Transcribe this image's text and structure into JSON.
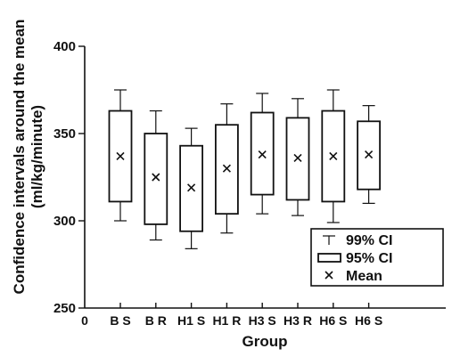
{
  "chart_data": {
    "type": "boxplot",
    "title": "",
    "xlabel": "Group",
    "ylabel_line1": "Confidence intervals around the mean",
    "ylabel_line2": "(ml/kg/minute)",
    "x_origin_label": "0",
    "ylim": [
      250,
      400
    ],
    "yticks": [
      250,
      300,
      350,
      400
    ],
    "categories": [
      "B S",
      "B R",
      "H1 S",
      "H1 R",
      "H3 S",
      "H3 R",
      "H6 S",
      "H6 S"
    ],
    "mean": [
      337,
      325,
      319,
      330,
      338,
      336,
      337,
      338
    ],
    "ci95_low": [
      311,
      298,
      294,
      304,
      315,
      312,
      311,
      318
    ],
    "ci95_high": [
      363,
      350,
      343,
      355,
      362,
      359,
      363,
      357
    ],
    "ci99_low": [
      300,
      289,
      284,
      293,
      304,
      303,
      299,
      310
    ],
    "ci99_high": [
      375,
      363,
      353,
      367,
      373,
      370,
      375,
      366
    ],
    "legend": {
      "position": "bottom-right",
      "entries": [
        "99% CI",
        "95% CI",
        "Mean"
      ]
    },
    "grid": false
  }
}
